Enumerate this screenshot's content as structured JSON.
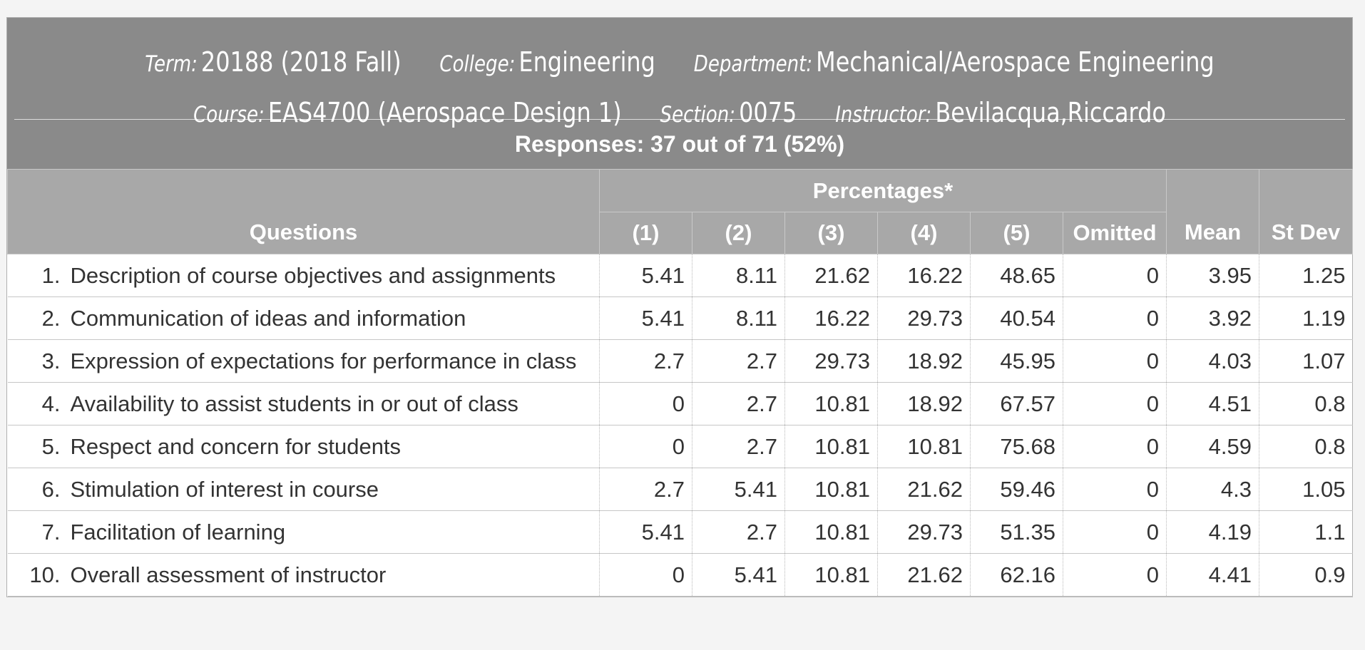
{
  "header": {
    "term_label": "Term:",
    "term": "20188 (2018 Fall)",
    "college_label": "College:",
    "college": "Engineering",
    "department_label": "Department:",
    "department": "Mechanical/Aerospace Engineering",
    "course_label": "Course:",
    "course": "EAS4700 (Aerospace Design 1)",
    "section_label": "Section:",
    "section": "0075",
    "instructor_label": "Instructor:",
    "instructor": "Bevilacqua,Riccardo",
    "responses": "Responses: 37 out of 71 (52%)"
  },
  "table": {
    "col_questions": "Questions",
    "col_percentages": "Percentages*",
    "col_p1": "(1)",
    "col_p2": "(2)",
    "col_p3": "(3)",
    "col_p4": "(4)",
    "col_p5": "(5)",
    "col_omitted": "Omitted",
    "col_mean": "Mean",
    "col_stdev": "St Dev",
    "rows": [
      {
        "num": "1.",
        "question": "Description of course objectives and assignments",
        "p1": "5.41",
        "p2": "8.11",
        "p3": "21.62",
        "p4": "16.22",
        "p5": "48.65",
        "omitted": "0",
        "mean": "3.95",
        "stdev": "1.25"
      },
      {
        "num": "2.",
        "question": "Communication of ideas and information",
        "p1": "5.41",
        "p2": "8.11",
        "p3": "16.22",
        "p4": "29.73",
        "p5": "40.54",
        "omitted": "0",
        "mean": "3.92",
        "stdev": "1.19"
      },
      {
        "num": "3.",
        "question": "Expression of expectations for performance in class",
        "p1": "2.7",
        "p2": "2.7",
        "p3": "29.73",
        "p4": "18.92",
        "p5": "45.95",
        "omitted": "0",
        "mean": "4.03",
        "stdev": "1.07"
      },
      {
        "num": "4.",
        "question": "Availability to assist students in or out of class",
        "p1": "0",
        "p2": "2.7",
        "p3": "10.81",
        "p4": "18.92",
        "p5": "67.57",
        "omitted": "0",
        "mean": "4.51",
        "stdev": "0.8"
      },
      {
        "num": "5.",
        "question": "Respect and concern for students",
        "p1": "0",
        "p2": "2.7",
        "p3": "10.81",
        "p4": "10.81",
        "p5": "75.68",
        "omitted": "0",
        "mean": "4.59",
        "stdev": "0.8"
      },
      {
        "num": "6.",
        "question": "Stimulation of interest in course",
        "p1": "2.7",
        "p2": "5.41",
        "p3": "10.81",
        "p4": "21.62",
        "p5": "59.46",
        "omitted": "0",
        "mean": "4.3",
        "stdev": "1.05"
      },
      {
        "num": "7.",
        "question": "Facilitation of learning",
        "p1": "5.41",
        "p2": "2.7",
        "p3": "10.81",
        "p4": "29.73",
        "p5": "51.35",
        "omitted": "0",
        "mean": "4.19",
        "stdev": "1.1"
      },
      {
        "num": "10.",
        "question": "Overall assessment of instructor",
        "p1": "0",
        "p2": "5.41",
        "p3": "10.81",
        "p4": "21.62",
        "p5": "62.16",
        "omitted": "0",
        "mean": "4.41",
        "stdev": "0.9"
      }
    ]
  },
  "colors": {
    "header_bg": "#8a8a8a",
    "column_header_bg": "#a8a8a8",
    "text": "#333333"
  }
}
